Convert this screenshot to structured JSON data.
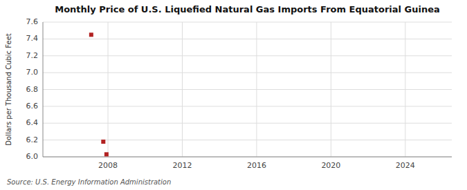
{
  "chart_data": {
    "type": "scatter",
    "title": "Monthly Price of U.S. Liquefied Natural Gas Imports From Equatorial Guinea",
    "y_label": "Dollars per Thousand Cubic Feet",
    "source": "Source: U.S. Energy Information Administration",
    "x": [
      2007.1,
      2007.75,
      2007.92
    ],
    "values": [
      7.45,
      6.18,
      6.03
    ],
    "color": "#b22222",
    "marker": "square",
    "xlim": [
      2004.5,
      2026.5
    ],
    "ylim": [
      6.0,
      7.6
    ],
    "xticks": [
      2008,
      2012,
      2016,
      2020,
      2024
    ],
    "yticks": [
      {
        "value": 6.0,
        "label": "6.0"
      },
      6.2,
      6.4,
      6.6,
      6.8,
      {
        "value": 7.0,
        "label": "7.0"
      },
      7.2,
      7.4,
      7.6
    ],
    "grid": true
  }
}
